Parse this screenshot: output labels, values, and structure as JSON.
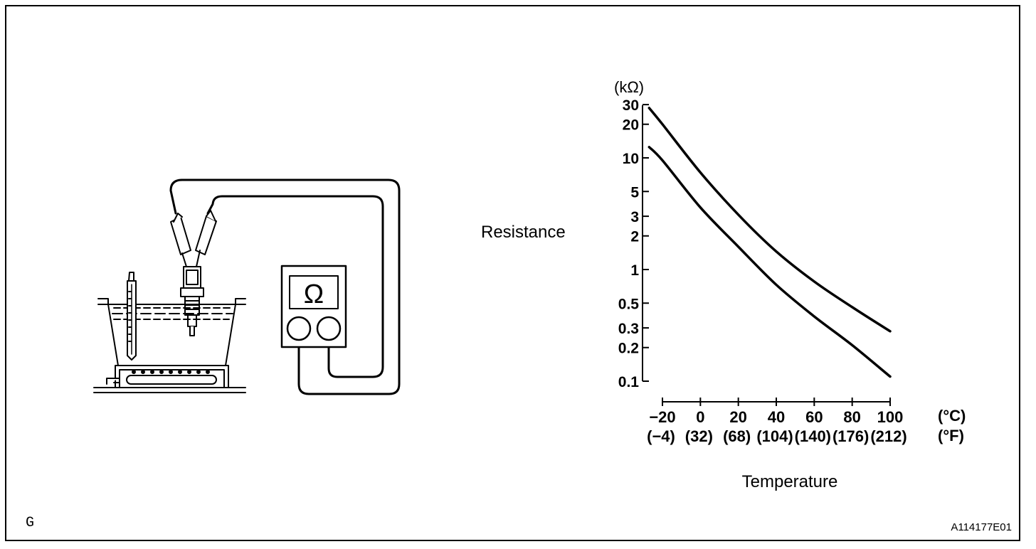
{
  "illustration": {
    "meter_symbol": "Ω"
  },
  "graph": {
    "y_unit": "(kΩ)",
    "y_title": "Resistance",
    "x_title": "Temperature",
    "x_unit_c": "(°C)",
    "x_unit_f": "(°F)",
    "y_ticks": [
      {
        "value": 30,
        "label": "30"
      },
      {
        "value": 20,
        "label": "20"
      },
      {
        "value": 10,
        "label": "10"
      },
      {
        "value": 5,
        "label": "5"
      },
      {
        "value": 3,
        "label": "3"
      },
      {
        "value": 2,
        "label": "2"
      },
      {
        "value": 1,
        "label": "1"
      },
      {
        "value": 0.5,
        "label": "0.5"
      },
      {
        "value": 0.3,
        "label": "0.3"
      },
      {
        "value": 0.2,
        "label": "0.2"
      },
      {
        "value": 0.1,
        "label": "0.1"
      }
    ],
    "x_ticks": [
      {
        "value": -20,
        "label_c": "−20",
        "label_f": "(−4)"
      },
      {
        "value": 0,
        "label_c": "0",
        "label_f": "(32)"
      },
      {
        "value": 20,
        "label_c": "20",
        "label_f": "(68)"
      },
      {
        "value": 40,
        "label_c": "40",
        "label_f": "(104)"
      },
      {
        "value": 60,
        "label_c": "60",
        "label_f": "(140)"
      },
      {
        "value": 80,
        "label_c": "80",
        "label_f": "(176)"
      },
      {
        "value": 100,
        "label_c": "100",
        "label_f": "(212)"
      }
    ],
    "x_range": [
      -20,
      100
    ],
    "y_scale": "log",
    "curves": {
      "upper": {
        "x": [
          -27,
          -20,
          0,
          20,
          40,
          60,
          80,
          100
        ],
        "y": [
          28,
          20,
          7.4,
          3.1,
          1.45,
          0.78,
          0.46,
          0.28
        ]
      },
      "lower": {
        "x": [
          -27,
          -20,
          0,
          20,
          40,
          60,
          80,
          100
        ],
        "y": [
          12.5,
          9.5,
          3.6,
          1.6,
          0.73,
          0.38,
          0.21,
          0.11
        ]
      }
    }
  },
  "footer": {
    "left_code": "G",
    "figure_id": "A114177E01"
  }
}
